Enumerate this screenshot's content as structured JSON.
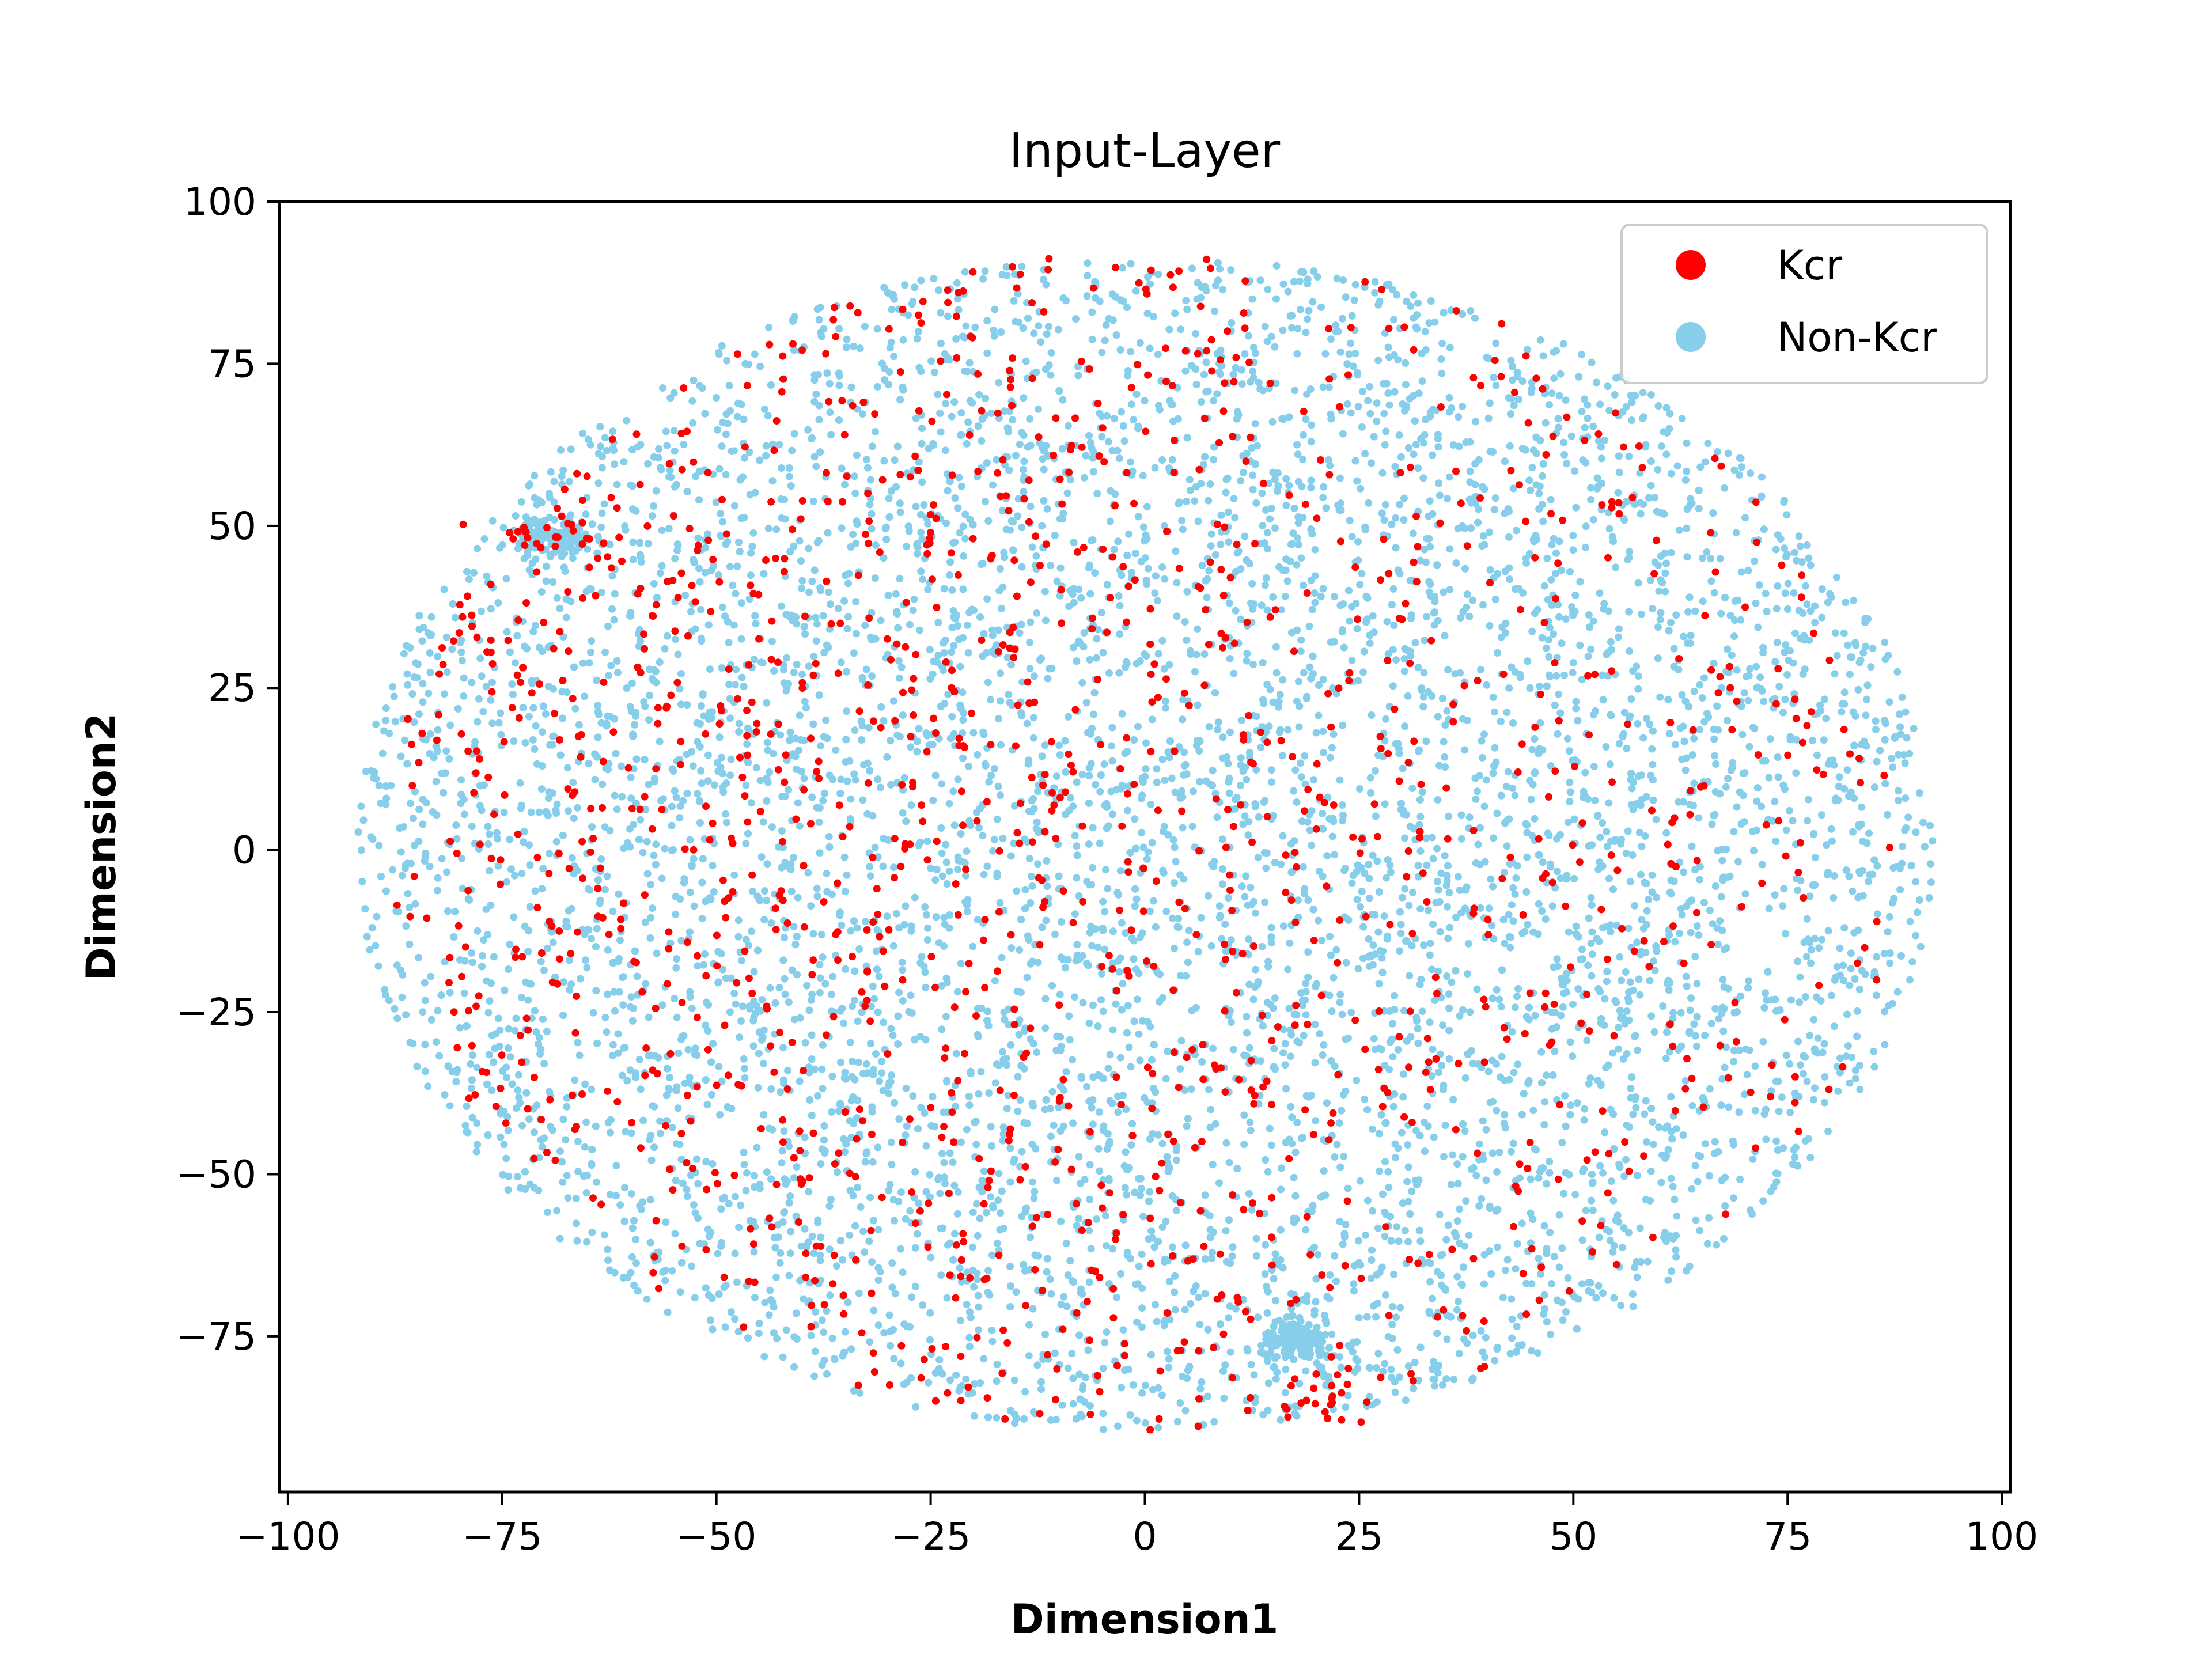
{
  "chart_data": {
    "type": "scatter",
    "title": "Input-Layer",
    "xlabel": "Dimension1",
    "ylabel": "Dimension2",
    "xlim": [
      -101,
      101
    ],
    "ylim": [
      -99,
      100
    ],
    "xticks": [
      -100,
      -75,
      -50,
      -25,
      0,
      25,
      50,
      75,
      100
    ],
    "xtick_labels": [
      "−100",
      "−75",
      "−50",
      "−25",
      "0",
      "25",
      "50",
      "75",
      "100"
    ],
    "yticks": [
      100,
      75,
      50,
      25,
      0,
      -25,
      -50,
      -75
    ],
    "ytick_labels": [
      "100",
      "75",
      "50",
      "25",
      "0",
      "−25",
      "−50",
      "−75"
    ],
    "grid": false,
    "legend": {
      "placement": "top-right",
      "entries": [
        {
          "label": "Kcr",
          "color": "#ff0000"
        },
        {
          "label": "Non-Kcr",
          "color": "#87ceeb"
        }
      ]
    },
    "series": [
      {
        "name": "Non-Kcr",
        "color": "#87ceeb",
        "approx_count": 9000,
        "distribution": "t-SNE embedding filling an ellipse centered near (0, 0)",
        "x_extent": [
          -92,
          92
        ],
        "y_extent": [
          -90,
          92
        ],
        "clusters": [
          {
            "x": -69,
            "y": 48,
            "note": "dense knot at upper-left edge"
          },
          {
            "x": 18,
            "y": -76,
            "note": "dense knot at bottom edge"
          }
        ]
      },
      {
        "name": "Kcr",
        "color": "#ff0000",
        "approx_count": 1400,
        "distribution": "scattered throughout the ellipse, denser in the left half",
        "x_extent": [
          -88,
          88
        ],
        "y_extent": [
          -90,
          92
        ],
        "clusters": [
          {
            "x": -69,
            "y": 49,
            "note": "dense red cluster at upper-left edge"
          },
          {
            "x": 20,
            "y": -85,
            "note": "dense red cluster at bottom edge"
          }
        ]
      }
    ]
  }
}
